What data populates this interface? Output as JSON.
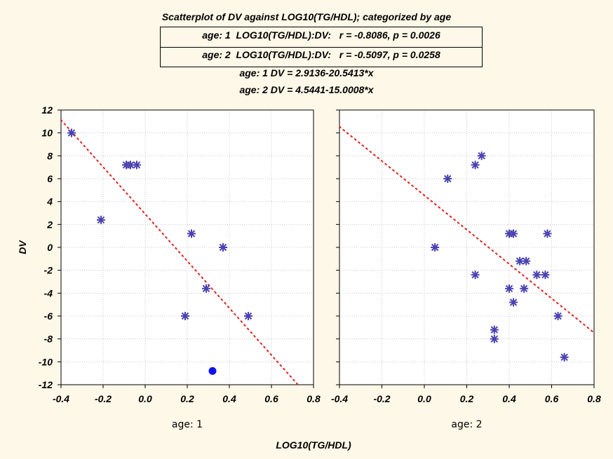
{
  "title": "Scatterplot of DV against LOG10(TG/HDL); categorized by age",
  "stats": [
    "age: 1  LOG10(TG/HDL):DV:   r = -0.8086, p = 0.0026",
    "age: 2  LOG10(TG/HDL):DV:   r = -0.5097, p = 0.0258"
  ],
  "equations": [
    "age: 1 DV = 2.9136-20.5413*x",
    "age: 2 DV = 4.5441-15.0008*x"
  ],
  "chart_data": {
    "type": "scatter",
    "xlabel": "LOG10(TG/HDL)",
    "ylabel": "DV",
    "xlim": [
      -0.4,
      0.8
    ],
    "ylim": [
      -12,
      12
    ],
    "xticks": [
      "-0.4",
      "-0.2",
      "0.0",
      "0.2",
      "0.4",
      "0.6",
      "0.8"
    ],
    "yticks": [
      "12",
      "10",
      "8",
      "6",
      "4",
      "2",
      "0",
      "-2",
      "-4",
      "-6",
      "-8",
      "-10",
      "-12"
    ],
    "grid": true,
    "marker_color": "#4a42b0",
    "fit_color": "#e02020",
    "highlight_color": "#1010ee",
    "panels": [
      {
        "label": "age: 1",
        "intercept": 2.9136,
        "slope": -20.5413,
        "points": [
          [
            -0.35,
            10.0
          ],
          [
            -0.21,
            2.4
          ],
          [
            -0.09,
            7.2
          ],
          [
            -0.07,
            7.2
          ],
          [
            -0.04,
            7.2
          ],
          [
            0.22,
            1.2
          ],
          [
            0.37,
            0.0
          ],
          [
            0.29,
            -3.6
          ],
          [
            0.19,
            -6.0
          ],
          [
            0.49,
            -6.0
          ]
        ],
        "highlight": [
          [
            0.32,
            -10.8
          ]
        ]
      },
      {
        "label": "age: 2",
        "intercept": 4.5441,
        "slope": -15.0008,
        "points": [
          [
            0.27,
            8.0
          ],
          [
            0.24,
            7.2
          ],
          [
            0.11,
            6.0
          ],
          [
            0.05,
            0.0
          ],
          [
            0.24,
            -2.4
          ],
          [
            0.4,
            1.2
          ],
          [
            0.42,
            1.2
          ],
          [
            0.58,
            1.2
          ],
          [
            0.45,
            -1.2
          ],
          [
            0.48,
            -1.2
          ],
          [
            0.53,
            -2.4
          ],
          [
            0.57,
            -2.4
          ],
          [
            0.4,
            -3.6
          ],
          [
            0.47,
            -3.6
          ],
          [
            0.42,
            -4.8
          ],
          [
            0.63,
            -6.0
          ],
          [
            0.33,
            -7.2
          ],
          [
            0.33,
            -8.0
          ],
          [
            0.66,
            -9.6
          ]
        ],
        "highlight": []
      }
    ]
  }
}
